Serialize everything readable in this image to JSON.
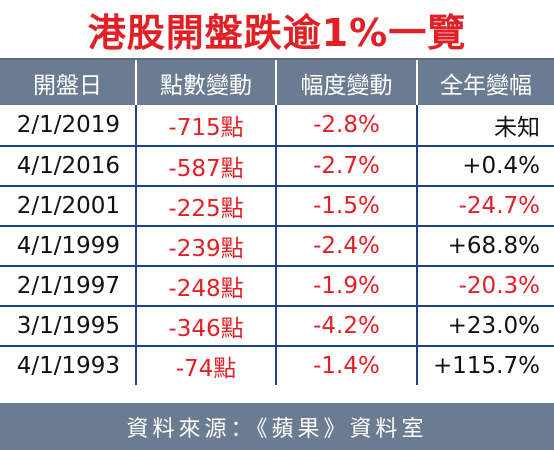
{
  "title": "港股開盤跌逾1%一覽",
  "headers": [
    "開盤日",
    "點數變動",
    "幅度變動",
    "全年變幅"
  ],
  "rows": [
    {
      "date": "2/1/2019",
      "points": "-715點",
      "percent": "-2.8%",
      "annual": "未知",
      "annual_tone": "pos"
    },
    {
      "date": "4/1/2016",
      "points": "-587點",
      "percent": "-2.7%",
      "annual": "+0.4%",
      "annual_tone": "pos"
    },
    {
      "date": "2/1/2001",
      "points": "-225點",
      "percent": "-1.5%",
      "annual": "-24.7%",
      "annual_tone": "neg"
    },
    {
      "date": "4/1/1999",
      "points": "-239點",
      "percent": "-2.4%",
      "annual": "+68.8%",
      "annual_tone": "pos"
    },
    {
      "date": "2/1/1997",
      "points": "-248點",
      "percent": "-1.9%",
      "annual": "-20.3%",
      "annual_tone": "neg"
    },
    {
      "date": "3/1/1995",
      "points": "-346點",
      "percent": "-4.2%",
      "annual": "+23.0%",
      "annual_tone": "pos"
    },
    {
      "date": "4/1/1993",
      "points": "-74點",
      "percent": "-1.4%",
      "annual": "+115.7%",
      "annual_tone": "pos"
    }
  ],
  "source": "資料來源：《蘋果》資料室",
  "colors": {
    "title": "#e31f26",
    "header_bg": "#6b7b91",
    "grid_lines": "#1f3f91",
    "negative_text": "#e31f26",
    "normal_text": "#111111"
  }
}
